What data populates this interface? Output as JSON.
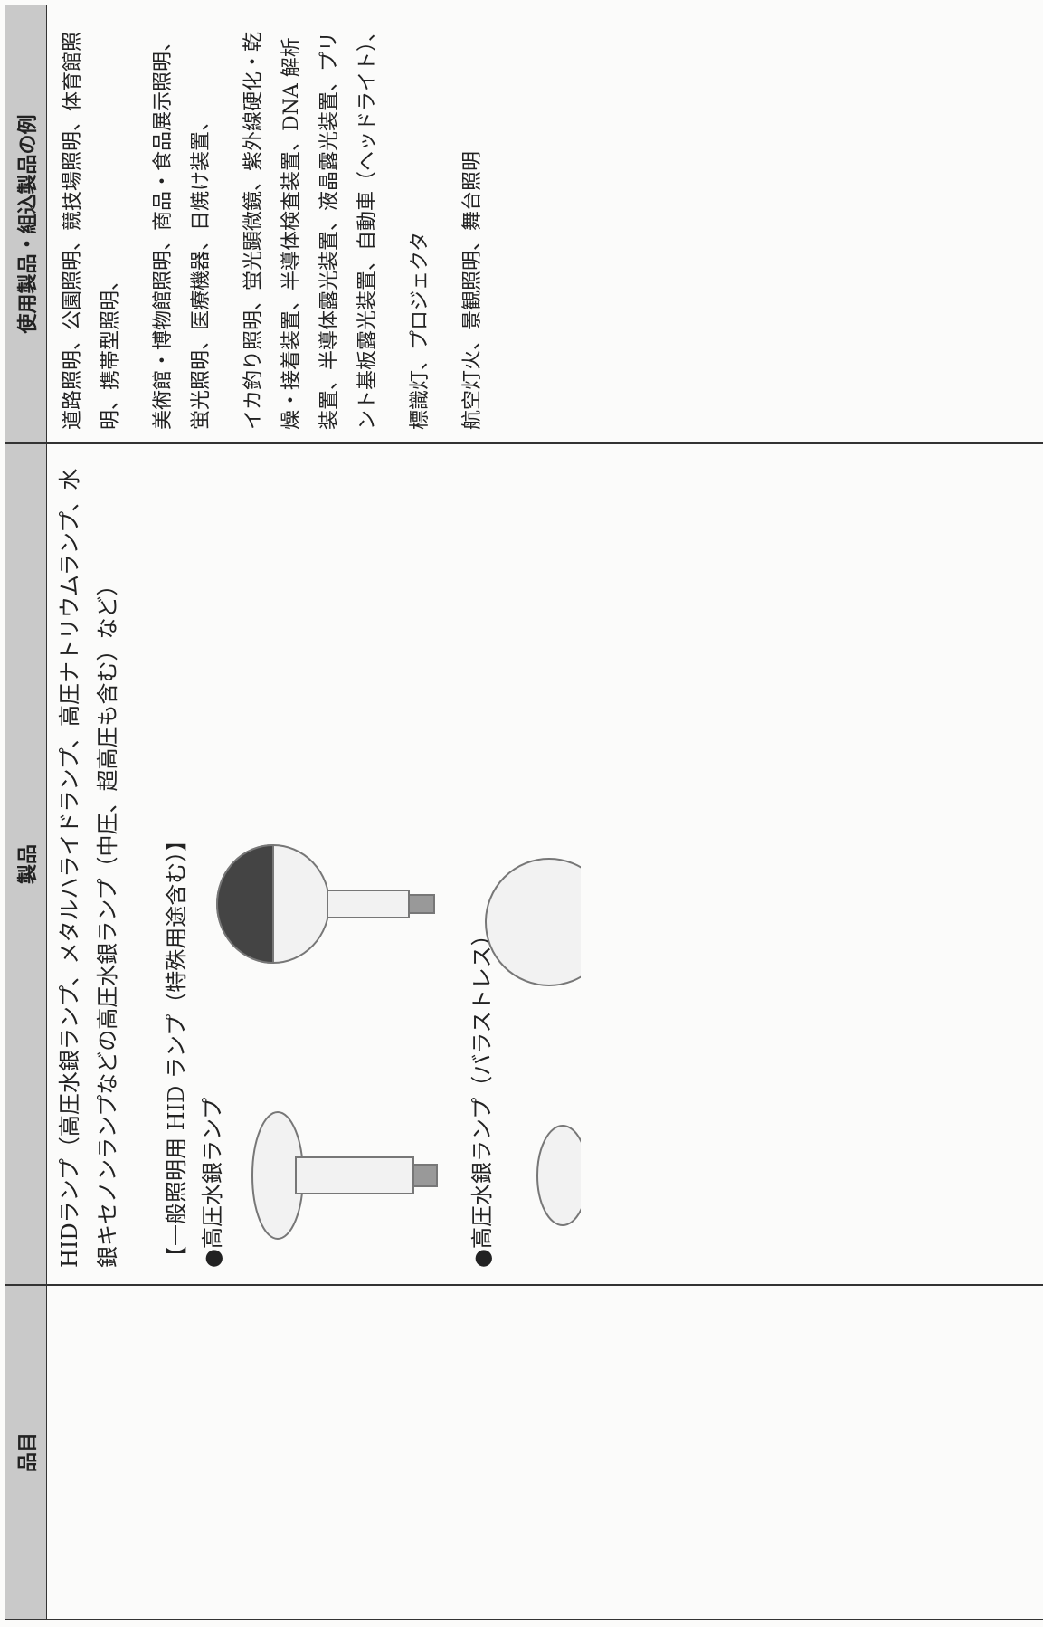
{
  "table": {
    "header": [
      "品目",
      "製品",
      "使用製品・組込製品の例"
    ],
    "products": {
      "description": "HIDランプ（高圧水銀ランプ、メタルハライドランプ、高圧ナトリウムランプ、水銀キセノンランプなどの高圧水銀ランプ（中圧、超高圧も含む）など）",
      "group": "【一般照明用 HID ランプ（特殊用途含む）】",
      "items": [
        "●高圧水銀ランプ",
        "●高圧水銀ランプ（バラストレス）"
      ]
    },
    "examples": [
      "道路照明、公園照明、競技場照明、体育館照明、携帯型照明、",
      "美術館・博物館照明、商品・食品展示照明、蛍光照明、医療機器、日焼け装置、",
      "イカ釣り照明、蛍光顕微鏡、紫外線硬化・乾燥・接着装置、半導体検査装置、DNA 解析装置、半導体露光装置、液晶露光装置、プリント基板露光装置、自動車（ヘッドライト）、",
      "標識灯、プロジェクタ",
      "航空灯火、景観照明、舞台照明"
    ]
  }
}
